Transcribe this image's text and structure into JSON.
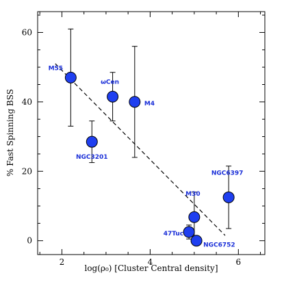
{
  "chart_data": {
    "type": "scatter",
    "xlabel": "log(ρ₀) [Cluster Central density]",
    "ylabel": "% Fast Spinning BSS",
    "xlim": [
      1.45,
      6.6
    ],
    "ylim": [
      -4,
      66
    ],
    "x_ticks": [
      2,
      4,
      6
    ],
    "y_ticks": [
      0,
      20,
      40,
      60
    ],
    "x_minor_step": 0.5,
    "y_minor_step": 5,
    "point_color": "#1f3ff0",
    "label_color": "#1a2fd8",
    "points": [
      {
        "name": "M55",
        "x": 2.2,
        "y": 47,
        "err_low": 33,
        "err_high": 61
      },
      {
        "name": "NGC3201",
        "x": 2.68,
        "y": 28.5,
        "err_low": 22.5,
        "err_high": 34.5
      },
      {
        "name": "ωCen",
        "x": 3.15,
        "y": 41.5,
        "err_low": 34.5,
        "err_high": 48.5
      },
      {
        "name": "M4",
        "x": 3.65,
        "y": 40,
        "err_low": 24,
        "err_high": 56
      },
      {
        "name": "M30",
        "x": 5.0,
        "y": 6.8,
        "err_low": 0.5,
        "err_high": 14
      },
      {
        "name": "47Tuc",
        "x": 4.88,
        "y": 2.5,
        "err_low": 0.5,
        "err_high": 4.5
      },
      {
        "name": "NGC6752",
        "x": 5.05,
        "y": 0,
        "err_low": 0,
        "err_high": 0
      },
      {
        "name": "NGC6397",
        "x": 5.78,
        "y": 12.5,
        "err_low": 3.5,
        "err_high": 21.5
      }
    ],
    "fit_line": {
      "x": [
        1.85,
        5.7
      ],
      "y": [
        51,
        1.5
      ]
    }
  }
}
